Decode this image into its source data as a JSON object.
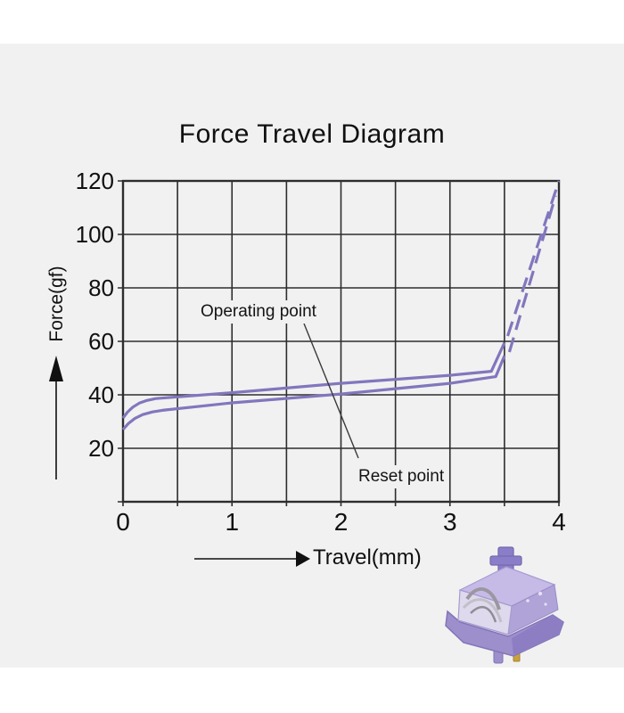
{
  "page": {
    "background": "#ffffff",
    "panel_background": "#f1f1f1",
    "text_color": "#101010"
  },
  "chart_data": {
    "type": "line",
    "title": "Force Travel Diagram",
    "xlabel": "Travel(mm)",
    "ylabel": "Force(gf)",
    "xlim": [
      0,
      4
    ],
    "ylim": [
      0,
      120
    ],
    "x_ticks": [
      "0",
      "1",
      "2",
      "3",
      "4"
    ],
    "y_ticks": [
      "120",
      "100",
      "80",
      "60",
      "40",
      "20"
    ],
    "grid": "on",
    "grid_color": "#2d2d2d",
    "line_color": "#8177bd",
    "legend_position": "none",
    "annotations": [
      {
        "label": "Operating point"
      },
      {
        "label": "Reset point"
      }
    ],
    "series": [
      {
        "name": "press-stroke",
        "style": "solid",
        "points": [
          [
            0,
            31.3
          ],
          [
            0.04,
            33.5
          ],
          [
            0.09,
            35.4
          ],
          [
            0.15,
            36.9
          ],
          [
            0.22,
            37.9
          ],
          [
            0.3,
            38.6
          ],
          [
            1.0,
            40.8
          ],
          [
            2.0,
            44.3
          ],
          [
            3.0,
            47.3
          ],
          [
            3.38,
            48.8
          ],
          [
            3.5,
            59.5
          ]
        ]
      },
      {
        "name": "release-stroke",
        "style": "solid",
        "points": [
          [
            0,
            27.0
          ],
          [
            0.05,
            29.3
          ],
          [
            0.11,
            31.2
          ],
          [
            0.18,
            32.6
          ],
          [
            0.27,
            33.6
          ],
          [
            0.36,
            34.2
          ],
          [
            1.0,
            37.0
          ],
          [
            2.0,
            40.3
          ],
          [
            3.0,
            44.3
          ],
          [
            3.42,
            46.8
          ],
          [
            3.5,
            54.6
          ]
        ]
      },
      {
        "name": "press-bottom-out",
        "style": "dashed",
        "points": [
          [
            3.53,
            62.0
          ],
          [
            4.0,
            120.0
          ]
        ]
      },
      {
        "name": "release-bottom-out",
        "style": "dashed",
        "points": [
          [
            3.545,
            56.0
          ],
          [
            3.97,
            114.5
          ]
        ]
      }
    ]
  },
  "switch_photo": {
    "description": "purple mechanical keyboard switch",
    "colors": {
      "stem": "#8b7ec8",
      "top_face": "#c6bbe6",
      "window": "#ded9ec",
      "right_face": "#af a3d8",
      "bottom_housing": "#9c8fcc",
      "pin_gold": "#c9a23f",
      "leaf_metal": "#9a97a1"
    }
  }
}
